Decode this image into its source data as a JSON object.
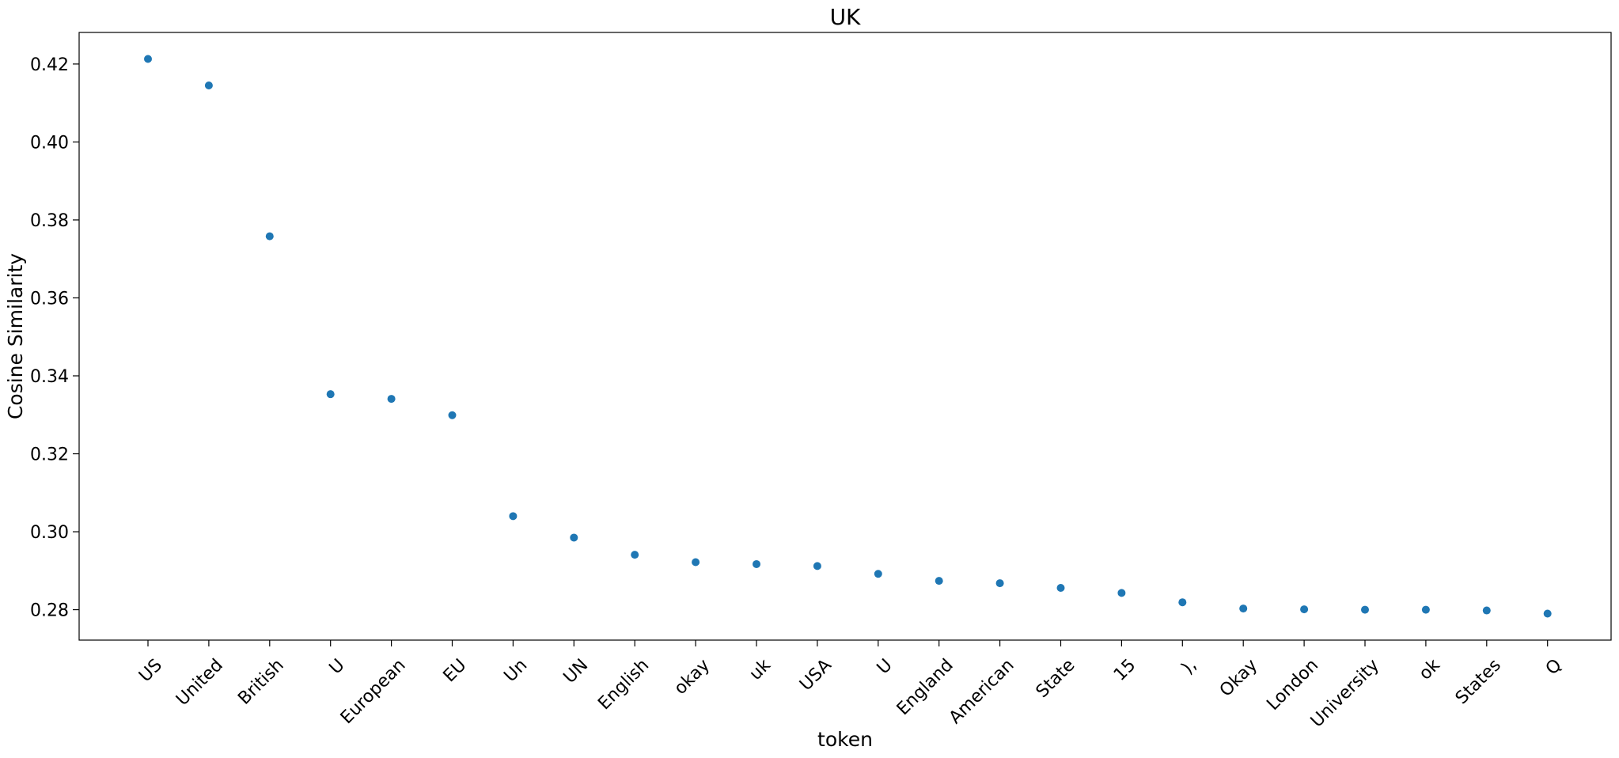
{
  "chart_data": {
    "type": "scatter",
    "title": "UK",
    "xlabel": "token",
    "ylabel": "Cosine Similarity",
    "categories": [
      "US",
      "United",
      "British",
      "U",
      "European",
      "EU",
      "Un",
      "UN",
      "English",
      "okay",
      "uk",
      "USA",
      "U",
      "England",
      "American",
      "State",
      "15",
      "),",
      "Okay",
      "London",
      "University",
      "ok",
      "States",
      "Q"
    ],
    "values": [
      0.4213,
      0.4145,
      0.3758,
      0.3353,
      0.3341,
      0.3299,
      0.304,
      0.2985,
      0.2941,
      0.2922,
      0.2917,
      0.2912,
      0.2892,
      0.2874,
      0.2868,
      0.2856,
      0.2843,
      0.2819,
      0.2803,
      0.2801,
      0.28,
      0.28,
      0.2798,
      0.279
    ],
    "yticks": [
      0.28,
      0.3,
      0.32,
      0.34,
      0.36,
      0.38,
      0.4,
      0.42
    ],
    "ytick_labels": [
      "0.28",
      "0.30",
      "0.32",
      "0.34",
      "0.36",
      "0.38",
      "0.40",
      "0.42"
    ],
    "ylim": [
      0.2722,
      0.4281
    ],
    "grid": false,
    "legend": "none",
    "marker_color": "#1f77b4"
  }
}
